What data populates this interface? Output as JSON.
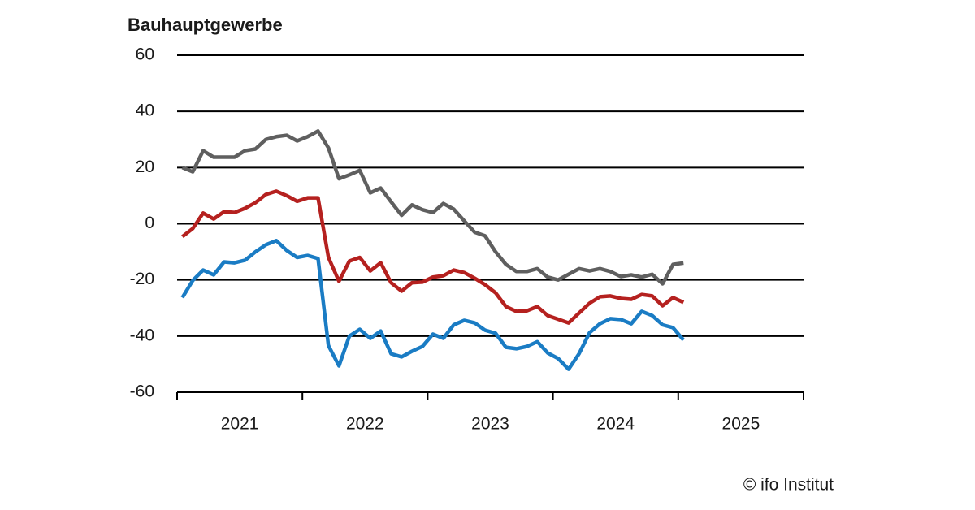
{
  "chart_data": {
    "type": "line",
    "title": "Bauhauptgewerbe",
    "source": "© ifo Institut",
    "x": [
      2021.042,
      2021.125,
      2021.208,
      2021.292,
      2021.375,
      2021.458,
      2021.542,
      2021.625,
      2021.708,
      2021.792,
      2021.875,
      2021.958,
      2022.042,
      2022.125,
      2022.208,
      2022.292,
      2022.375,
      2022.458,
      2022.542,
      2022.625,
      2022.708,
      2022.792,
      2022.875,
      2022.958,
      2023.042,
      2023.125,
      2023.208,
      2023.292,
      2023.375,
      2023.458,
      2023.542,
      2023.625,
      2023.708,
      2023.792,
      2023.875,
      2023.958,
      2024.042,
      2024.125,
      2024.208,
      2024.292,
      2024.375,
      2024.458,
      2024.542,
      2024.625,
      2024.708,
      2024.792,
      2024.875,
      2024.958,
      2025.042
    ],
    "series": [
      {
        "color": "#5f5f5f",
        "values": [
          20,
          18.5,
          26,
          23.7,
          23.7,
          23.7,
          26,
          26.6,
          30,
          31,
          31.5,
          29.5,
          31,
          33,
          27,
          16,
          17.4,
          19,
          11,
          12.7,
          7.8,
          3,
          6.7,
          5,
          4,
          7.2,
          5.2,
          1,
          -3,
          -4.3,
          -10,
          -14.5,
          -17,
          -17,
          -16,
          -19,
          -20,
          -18,
          -16,
          -16.8,
          -16,
          -17,
          -18.8,
          -18.2,
          -19,
          -18,
          -21.4,
          -14.5,
          -14
        ]
      },
      {
        "color": "#b5211f",
        "values": [
          -4.6,
          -1.7,
          3.8,
          1.7,
          4.3,
          4,
          5.5,
          7.5,
          10.4,
          11.6,
          10,
          8,
          9.2,
          9.2,
          -12,
          -20.5,
          -13.3,
          -12,
          -16.8,
          -13.9,
          -21,
          -24,
          -21,
          -20.8,
          -19,
          -18.5,
          -16.5,
          -17.4,
          -19.4,
          -21.7,
          -24.6,
          -29.5,
          -31.2,
          -31,
          -29.5,
          -32.7,
          -34,
          -35.3,
          -31.8,
          -28.3,
          -26,
          -25.7,
          -26.6,
          -26.9,
          -25.2,
          -25.7,
          -29.2,
          -26.3,
          -28
        ]
      },
      {
        "color": "#1a7cc4",
        "values": [
          -26.3,
          -20.2,
          -16.5,
          -18.2,
          -13.6,
          -13.9,
          -13,
          -10,
          -7.5,
          -6,
          -9.5,
          -12,
          -11.3,
          -12.4,
          -43.4,
          -50.6,
          -40,
          -37.6,
          -40.8,
          -38.2,
          -46.3,
          -47.4,
          -45.4,
          -43.7,
          -39.3,
          -40.8,
          -36,
          -34.4,
          -35.3,
          -37.9,
          -39,
          -44,
          -44.5,
          -43.7,
          -42,
          -46,
          -48,
          -51.8,
          -46.3,
          -38.8,
          -35.6,
          -33.8,
          -34.1,
          -35.6,
          -31.2,
          -32.7,
          -36,
          -37,
          -41.4
        ]
      }
    ],
    "xlim": [
      2021,
      2026
    ],
    "xticks": [
      2021,
      2022,
      2023,
      2024,
      2025,
      2026
    ],
    "year_labels": [
      2021,
      2022,
      2023,
      2024,
      2025
    ],
    "ylim": [
      -60,
      60
    ],
    "yticks": [
      -60,
      -40,
      -20,
      0,
      20,
      40,
      60
    ],
    "grid": true
  }
}
